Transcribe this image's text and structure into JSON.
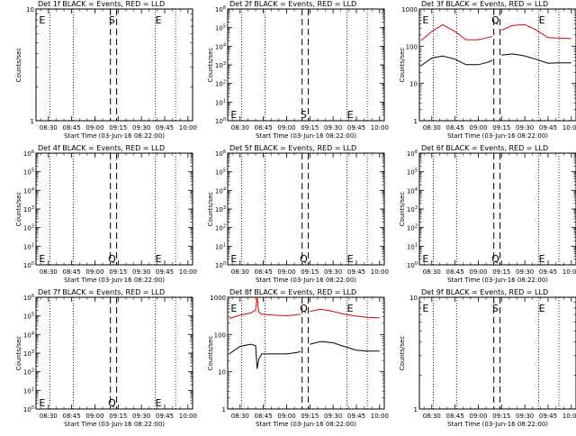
{
  "figure": {
    "xlabel": "Start Time (03-Jun-16 08:22:00)",
    "ylabel": "Counts/sec",
    "x_tick_labels": [
      "08:30",
      "08:45",
      "09:00",
      "09:15",
      "09:30",
      "09:45",
      "10:00"
    ],
    "legend_text": "BLACK = Events, RED = LLD",
    "colors": {
      "events": "#000000",
      "lld": "#e00000",
      "axes": "#000000",
      "background": "#ffffff"
    }
  },
  "chart_data": [
    {
      "type": "line",
      "title": "Det 1f BLACK = Events, RED = LLD",
      "yscale": "log",
      "ylim": [
        1,
        10
      ],
      "y_tick_labels": [
        {
          "v": 1,
          "t": "1"
        },
        {
          "v": 10,
          "t": "10"
        }
      ],
      "markers": [
        {
          "label": "E",
          "x": "08:26"
        },
        {
          "label": "S",
          "x": "09:11"
        },
        {
          "label": "E",
          "x": "09:41"
        }
      ],
      "vlines_dotted": [
        "08:31",
        "08:46",
        "09:39",
        "09:52"
      ],
      "vlines_dashed": [
        "09:10",
        "09:14"
      ],
      "series": []
    },
    {
      "type": "line",
      "title": "Det 2f BLACK = Events, RED = LLD",
      "yscale": "log",
      "ylim": [
        1,
        1000000
      ],
      "y_tick_labels": [
        {
          "v": 1,
          "t": "10^0"
        },
        {
          "v": 10,
          "t": "10^1"
        },
        {
          "v": 100,
          "t": "10^2"
        },
        {
          "v": 1000,
          "t": "10^3"
        },
        {
          "v": 10000,
          "t": "10^4"
        },
        {
          "v": 100000,
          "t": "10^5"
        },
        {
          "v": 1000000,
          "t": "10^6"
        }
      ],
      "markers": [
        {
          "label": "E",
          "x": "08:26"
        },
        {
          "label": "S",
          "x": "09:11"
        },
        {
          "label": "E",
          "x": "09:41"
        }
      ],
      "vlines_dotted": [
        "08:31",
        "08:46",
        "09:39",
        "09:52"
      ],
      "vlines_dashed": [
        "09:10",
        "09:14"
      ],
      "series": []
    },
    {
      "type": "line",
      "title": "Det 3f BLACK = Events, RED = LLD",
      "yscale": "log",
      "ylim": [
        1,
        1000
      ],
      "y_tick_labels": [
        {
          "v": 1,
          "t": "1"
        },
        {
          "v": 10,
          "t": "10"
        },
        {
          "v": 100,
          "t": "100"
        },
        {
          "v": 1000,
          "t": "1000"
        }
      ],
      "markers": [
        {
          "label": "E",
          "x": "08:26"
        },
        {
          "label": "Q",
          "x": "09:11"
        },
        {
          "label": "E",
          "x": "09:41"
        }
      ],
      "vlines_dotted": [
        "08:31",
        "08:46",
        "09:39",
        "09:52"
      ],
      "vlines_dashed": [
        "09:10",
        "09:14"
      ],
      "series": [
        {
          "color": "#e00000",
          "x": [
            "08:23",
            "08:30",
            "08:37",
            "08:45",
            "08:52",
            "09:00",
            "09:07",
            "09:09",
            "09:15",
            "09:22",
            "09:30",
            "09:37",
            "09:45",
            "09:52",
            "10:00"
          ],
          "y": [
            140,
            250,
            380,
            250,
            150,
            150,
            175,
            185,
            270,
            360,
            380,
            280,
            170,
            165,
            160
          ]
        },
        {
          "color": "#000000",
          "x": [
            "08:23",
            "08:30",
            "08:37",
            "08:45",
            "08:52",
            "09:00",
            "09:07",
            "09:09",
            "09:15",
            "09:22",
            "09:30",
            "09:37",
            "09:45",
            "09:52",
            "10:00"
          ],
          "y": [
            30,
            48,
            55,
            45,
            32,
            32,
            38,
            42,
            58,
            62,
            55,
            45,
            35,
            36,
            36
          ]
        }
      ]
    },
    {
      "type": "line",
      "title": "Det 4f BLACK = Events, RED = LLD",
      "yscale": "log",
      "ylim": [
        1,
        1000000
      ],
      "y_tick_labels": [
        {
          "v": 1,
          "t": "10^0"
        },
        {
          "v": 10,
          "t": "10^1"
        },
        {
          "v": 100,
          "t": "10^2"
        },
        {
          "v": 1000,
          "t": "10^3"
        },
        {
          "v": 10000,
          "t": "10^4"
        },
        {
          "v": 100000,
          "t": "10^5"
        },
        {
          "v": 1000000,
          "t": "10^6"
        }
      ],
      "markers": [
        {
          "label": "E",
          "x": "08:26"
        },
        {
          "label": "Q",
          "x": "09:11"
        },
        {
          "label": "E",
          "x": "09:41"
        }
      ],
      "vlines_dotted": [
        "08:31",
        "08:46",
        "09:39",
        "09:52"
      ],
      "vlines_dashed": [
        "09:10",
        "09:14"
      ],
      "series": []
    },
    {
      "type": "line",
      "title": "Det 5f BLACK = Events, RED = LLD",
      "yscale": "log",
      "ylim": [
        1,
        1000000
      ],
      "y_tick_labels": [
        {
          "v": 1,
          "t": "10^0"
        },
        {
          "v": 10,
          "t": "10^1"
        },
        {
          "v": 100,
          "t": "10^2"
        },
        {
          "v": 1000,
          "t": "10^3"
        },
        {
          "v": 10000,
          "t": "10^4"
        },
        {
          "v": 100000,
          "t": "10^5"
        },
        {
          "v": 1000000,
          "t": "10^6"
        }
      ],
      "markers": [
        {
          "label": "E",
          "x": "08:26"
        },
        {
          "label": "Q",
          "x": "09:11"
        },
        {
          "label": "E",
          "x": "09:41"
        }
      ],
      "vlines_dotted": [
        "08:31",
        "08:46",
        "09:39",
        "09:52"
      ],
      "vlines_dashed": [
        "09:10",
        "09:14"
      ],
      "series": []
    },
    {
      "type": "line",
      "title": "Det 6f BLACK = Events, RED = LLD",
      "yscale": "log",
      "ylim": [
        1,
        1000000
      ],
      "y_tick_labels": [
        {
          "v": 1,
          "t": "10^0"
        },
        {
          "v": 10,
          "t": "10^1"
        },
        {
          "v": 100,
          "t": "10^2"
        },
        {
          "v": 1000,
          "t": "10^3"
        },
        {
          "v": 10000,
          "t": "10^4"
        },
        {
          "v": 100000,
          "t": "10^5"
        },
        {
          "v": 1000000,
          "t": "10^6"
        }
      ],
      "markers": [
        {
          "label": "E",
          "x": "08:26"
        },
        {
          "label": "Q",
          "x": "09:11"
        },
        {
          "label": "E",
          "x": "09:41"
        }
      ],
      "vlines_dotted": [
        "08:31",
        "08:46",
        "09:39",
        "09:52"
      ],
      "vlines_dashed": [
        "09:10",
        "09:14"
      ],
      "series": []
    },
    {
      "type": "line",
      "title": "Det 7f BLACK = Events, RED = LLD",
      "yscale": "log",
      "ylim": [
        1,
        1000000
      ],
      "y_tick_labels": [
        {
          "v": 1,
          "t": "10^0"
        },
        {
          "v": 10,
          "t": "10^1"
        },
        {
          "v": 100,
          "t": "10^2"
        },
        {
          "v": 1000,
          "t": "10^3"
        },
        {
          "v": 10000,
          "t": "10^4"
        },
        {
          "v": 100000,
          "t": "10^5"
        },
        {
          "v": 1000000,
          "t": "10^6"
        }
      ],
      "markers": [
        {
          "label": "E",
          "x": "08:26"
        },
        {
          "label": "Q",
          "x": "09:11"
        },
        {
          "label": "E",
          "x": "09:41"
        }
      ],
      "vlines_dotted": [
        "08:31",
        "08:46",
        "09:39",
        "09:52"
      ],
      "vlines_dashed": [
        "09:10",
        "09:14"
      ],
      "series": []
    },
    {
      "type": "line",
      "title": "Det 8f BLACK = Events, RED = LLD",
      "yscale": "log",
      "ylim": [
        1,
        1000
      ],
      "y_tick_labels": [
        {
          "v": 1,
          "t": "1"
        },
        {
          "v": 10,
          "t": "10"
        },
        {
          "v": 100,
          "t": "100"
        },
        {
          "v": 1000,
          "t": "1000"
        }
      ],
      "markers": [
        {
          "label": "E",
          "x": "08:26"
        },
        {
          "label": "Q",
          "x": "09:11"
        },
        {
          "label": "E",
          "x": "09:41"
        }
      ],
      "vlines_dotted": [
        "08:31",
        "08:46",
        "09:39",
        "09:52"
      ],
      "vlines_dashed": [
        "09:10",
        "09:14"
      ],
      "series": [
        {
          "color": "#e00000",
          "x": [
            "08:23",
            "08:30",
            "08:37",
            "08:40",
            "08:41",
            "08:42",
            "08:44",
            "08:52",
            "09:00",
            "09:07",
            "09:09",
            "09:15",
            "09:22",
            "09:30",
            "09:37",
            "09:45",
            "09:52",
            "10:00"
          ],
          "y": [
            270,
            330,
            380,
            450,
            1000,
            400,
            350,
            330,
            320,
            340,
            350,
            420,
            480,
            420,
            350,
            310,
            290,
            280
          ]
        },
        {
          "color": "#000000",
          "x": [
            "08:23",
            "08:30",
            "08:37",
            "08:40",
            "08:41",
            "08:42",
            "08:44",
            "08:52",
            "09:00",
            "09:07",
            "09:09",
            "09:15",
            "09:22",
            "09:30",
            "09:37",
            "09:45",
            "09:52",
            "10:00"
          ],
          "y": [
            30,
            48,
            55,
            50,
            12,
            22,
            30,
            30,
            30,
            33,
            35,
            55,
            65,
            60,
            48,
            38,
            36,
            36
          ]
        }
      ]
    },
    {
      "type": "line",
      "title": "Det 9f BLACK = Events, RED = LLD",
      "yscale": "log",
      "ylim": [
        1,
        10
      ],
      "y_tick_labels": [
        {
          "v": 1,
          "t": "1"
        },
        {
          "v": 10,
          "t": "10"
        }
      ],
      "markers": [
        {
          "label": "E",
          "x": "08:26"
        },
        {
          "label": "S",
          "x": "09:11"
        },
        {
          "label": "E",
          "x": "09:41"
        }
      ],
      "vlines_dotted": [
        "08:31",
        "08:46",
        "09:39",
        "09:52"
      ],
      "vlines_dashed": [
        "09:10",
        "09:14"
      ],
      "series": []
    }
  ]
}
